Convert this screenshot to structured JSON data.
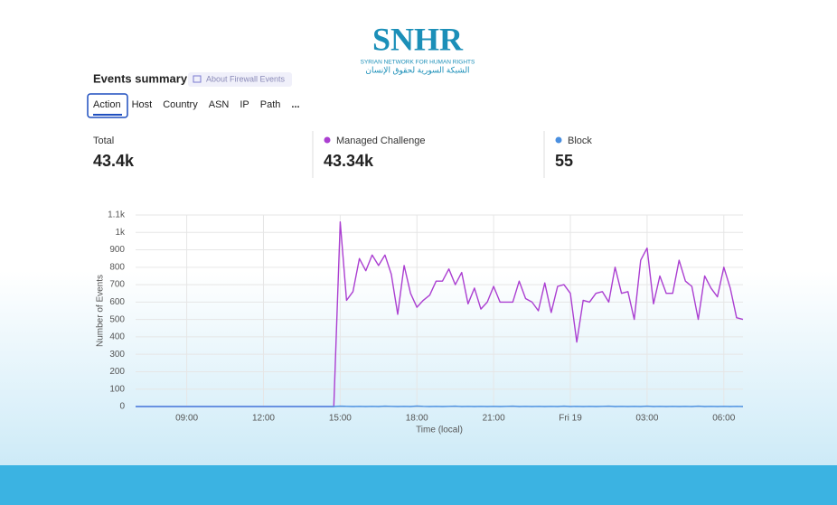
{
  "logo": {
    "name": "SNHR",
    "subtitle": "SYRIAN NETWORK FOR HUMAN RIGHTS",
    "arabic": "الشبكة السورية لحقوق الإنسان"
  },
  "header": {
    "title": "Events summary",
    "badge": "About Firewall Events"
  },
  "tabs": [
    "Action",
    "Host",
    "Country",
    "ASN",
    "IP",
    "Path",
    "..."
  ],
  "stats": [
    {
      "label": "Total",
      "value": "43.4k"
    },
    {
      "label": "Managed Challenge",
      "value": "43.34k",
      "color": "#ab3fd1"
    },
    {
      "label": "Block",
      "value": "55",
      "color": "#4a8fe0"
    }
  ],
  "chart_data": {
    "type": "line",
    "xlabel": "Time (local)",
    "ylabel": "Number of Events",
    "x": [
      "07:00",
      "07:15",
      "07:30",
      "07:45",
      "08:00",
      "08:15",
      "08:30",
      "08:45",
      "09:00",
      "09:15",
      "09:30",
      "09:45",
      "10:00",
      "10:15",
      "10:30",
      "10:45",
      "11:00",
      "11:15",
      "11:30",
      "11:45",
      "12:00",
      "12:15",
      "12:30",
      "12:45",
      "13:00",
      "13:15",
      "13:30",
      "13:45",
      "14:00",
      "14:15",
      "14:30",
      "14:45",
      "15:00",
      "15:15",
      "15:30",
      "15:45",
      "16:00",
      "16:15",
      "16:30",
      "16:45",
      "17:00",
      "17:15",
      "17:30",
      "17:45",
      "18:00",
      "18:15",
      "18:30",
      "18:45",
      "19:00",
      "19:15",
      "19:30",
      "19:45",
      "20:00",
      "20:15",
      "20:30",
      "20:45",
      "21:00",
      "21:15",
      "21:30",
      "21:45",
      "22:00",
      "22:15",
      "22:30",
      "22:45",
      "23:00",
      "23:15",
      "23:30",
      "23:45",
      "00:00",
      "00:15",
      "00:30",
      "00:45",
      "01:00",
      "01:15",
      "01:30",
      "01:45",
      "02:00",
      "02:15",
      "02:30",
      "02:45",
      "03:00",
      "03:15",
      "03:30",
      "03:45",
      "04:00",
      "04:15",
      "04:30",
      "04:45",
      "05:00",
      "05:15",
      "05:30",
      "05:45",
      "06:00",
      "06:15",
      "06:30",
      "06:45"
    ],
    "series": [
      {
        "name": "Managed Challenge",
        "color": "#ab3fd1",
        "values": [
          0,
          0,
          0,
          0,
          0,
          0,
          0,
          0,
          0,
          0,
          0,
          0,
          0,
          0,
          0,
          0,
          0,
          0,
          0,
          0,
          0,
          0,
          0,
          0,
          0,
          0,
          0,
          0,
          0,
          0,
          0,
          0,
          1060,
          610,
          660,
          850,
          780,
          870,
          810,
          870,
          760,
          530,
          810,
          650,
          570,
          610,
          640,
          720,
          720,
          790,
          700,
          770,
          590,
          680,
          560,
          600,
          690,
          600,
          600,
          600,
          720,
          620,
          600,
          550,
          710,
          540,
          690,
          700,
          650,
          370,
          610,
          600,
          650,
          660,
          600,
          800,
          650,
          660,
          500,
          840,
          910,
          590,
          750,
          650,
          650,
          840,
          720,
          690,
          500,
          750,
          680,
          630,
          800,
          680,
          510,
          500
        ]
      },
      {
        "name": "Block",
        "color": "#4a8fe0",
        "values": [
          0,
          0,
          0,
          0,
          0,
          0,
          0,
          0,
          0,
          0,
          0,
          0,
          0,
          0,
          0,
          0,
          0,
          0,
          0,
          0,
          0,
          0,
          0,
          0,
          0,
          0,
          0,
          0,
          0,
          0,
          0,
          0,
          2,
          1,
          0,
          1,
          0,
          1,
          0,
          2,
          1,
          0,
          1,
          0,
          3,
          1,
          0,
          1,
          0,
          1,
          2,
          0,
          1,
          0,
          1,
          0,
          1,
          0,
          1,
          2,
          0,
          1,
          0,
          1,
          0,
          1,
          0,
          2,
          0,
          1,
          0,
          1,
          0,
          1,
          2,
          0,
          1,
          0,
          1,
          0,
          2,
          0,
          1,
          0,
          1,
          0,
          1,
          0,
          2,
          0,
          1,
          0,
          1,
          0,
          1,
          0
        ]
      }
    ],
    "xlim": [
      "07:00",
      "06:45"
    ],
    "xticks": [
      "09:00",
      "12:00",
      "15:00",
      "18:00",
      "21:00",
      {
        "value": "00:00",
        "label": "Fri 19"
      },
      "03:00",
      "06:00"
    ],
    "ylim": [
      0,
      1100
    ],
    "yticks": [
      0,
      100,
      200,
      300,
      400,
      500,
      600,
      700,
      800,
      900,
      {
        "value": 1000,
        "label": "1k"
      },
      {
        "value": 1100,
        "label": "1.1k"
      }
    ],
    "grid": true
  }
}
